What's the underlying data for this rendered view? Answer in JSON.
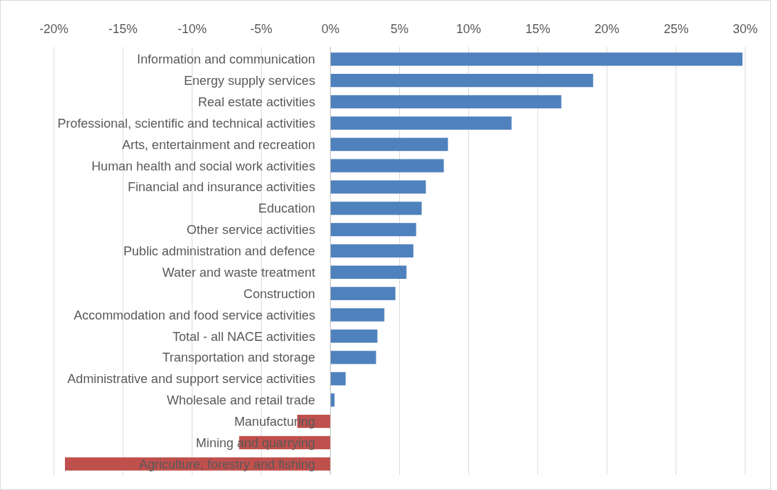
{
  "chart_data": {
    "type": "bar",
    "orientation": "horizontal",
    "categories": [
      "Information and communication",
      "Energy supply services",
      "Real estate activities",
      "Professional, scientific and technical activities",
      "Arts, entertainment and recreation",
      "Human health and social work activities",
      "Financial and insurance activities",
      "Education",
      "Other service activities",
      "Public administration and defence",
      "Water and waste treatment",
      "Construction",
      "Accommodation and food service activities",
      "Total - all NACE activities",
      "Transportation and storage",
      "Administrative and support service activities",
      "Wholesale and retail trade",
      "Manufacturing",
      "Mining and quarrying",
      "Agriculture, forestry and fishing"
    ],
    "values": [
      29.8,
      19.0,
      16.7,
      13.1,
      8.5,
      8.2,
      6.9,
      6.6,
      6.2,
      6.0,
      5.5,
      4.7,
      3.9,
      3.4,
      3.3,
      1.1,
      0.3,
      -2.4,
      -6.6,
      -19.2
    ],
    "colors": [
      "#4f81bd",
      "#4f81bd",
      "#4f81bd",
      "#4f81bd",
      "#4f81bd",
      "#4f81bd",
      "#4f81bd",
      "#4f81bd",
      "#4f81bd",
      "#4f81bd",
      "#4f81bd",
      "#4f81bd",
      "#4f81bd",
      "#4f81bd",
      "#4f81bd",
      "#4f81bd",
      "#4f81bd",
      "#c0504d",
      "#c0504d",
      "#c0504d"
    ],
    "xlim": [
      -20,
      30
    ],
    "xticks": [
      {
        "value": -20,
        "label": "-20%"
      },
      {
        "value": -15,
        "label": "-15%"
      },
      {
        "value": -10,
        "label": "-10%"
      },
      {
        "value": -5,
        "label": "-5%"
      },
      {
        "value": 0,
        "label": "0%"
      },
      {
        "value": 5,
        "label": "5%"
      },
      {
        "value": 10,
        "label": "10%"
      },
      {
        "value": 15,
        "label": "15%"
      },
      {
        "value": 20,
        "label": "20%"
      },
      {
        "value": 25,
        "label": "25%"
      },
      {
        "value": 30,
        "label": "30%"
      }
    ],
    "grid": "x"
  }
}
